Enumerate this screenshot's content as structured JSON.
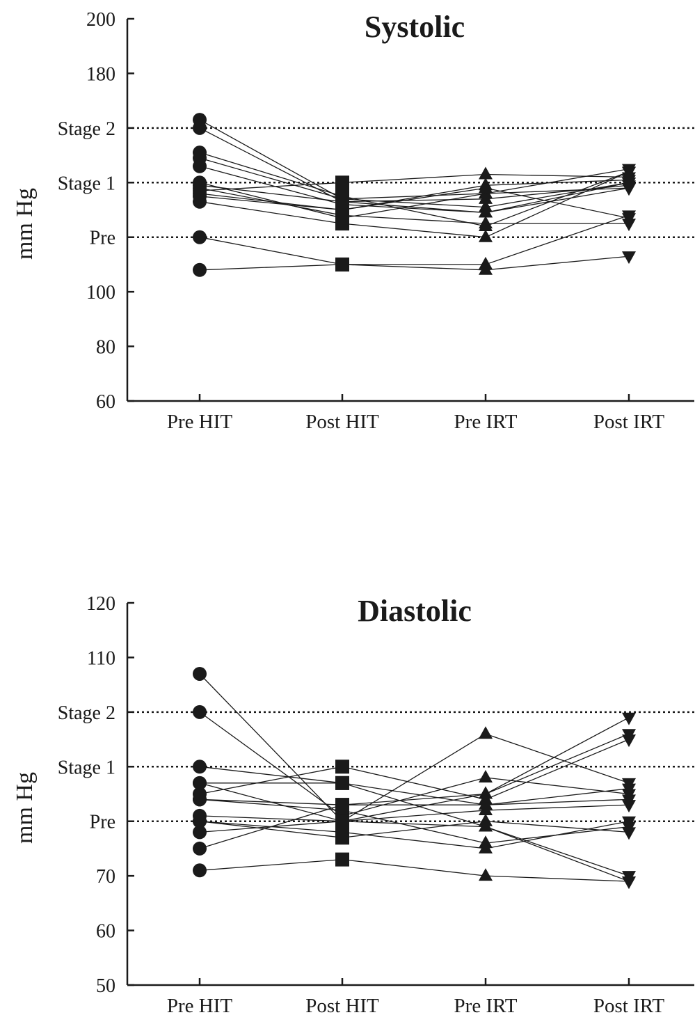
{
  "chart_data": [
    {
      "type": "line",
      "title": "Systolic",
      "ylabel": "mm Hg",
      "xlabel": "",
      "ylim": [
        60,
        200
      ],
      "yticks": [
        {
          "value": 60,
          "label": "60"
        },
        {
          "value": 80,
          "label": "80"
        },
        {
          "value": 100,
          "label": "100"
        },
        {
          "value": 120,
          "label": "Pre"
        },
        {
          "value": 140,
          "label": "Stage 1"
        },
        {
          "value": 160,
          "label": "Stage 2"
        },
        {
          "value": 180,
          "label": "180"
        },
        {
          "value": 200,
          "label": "200"
        }
      ],
      "reference_lines": [
        120,
        140,
        160
      ],
      "categories": [
        "Pre HIT",
        "Post HIT",
        "Pre IRT",
        "Post IRT"
      ],
      "markers": [
        "circle",
        "square",
        "triangle-up",
        "triangle-down"
      ],
      "series": [
        {
          "values": [
            163,
            134,
            136,
            145
          ]
        },
        {
          "values": [
            160,
            133,
            129,
            140
          ]
        },
        {
          "values": [
            151,
            135,
            124,
            144
          ]
        },
        {
          "values": [
            149,
            134,
            131,
            140
          ]
        },
        {
          "values": [
            146,
            132,
            129,
            138
          ]
        },
        {
          "values": [
            140,
            127,
            136,
            138
          ]
        },
        {
          "values": [
            139,
            133,
            134,
            139
          ]
        },
        {
          "values": [
            136,
            130,
            138,
            127
          ]
        },
        {
          "values": [
            135,
            130,
            139,
            141
          ]
        },
        {
          "values": [
            133,
            125,
            120,
            144
          ]
        },
        {
          "values": [
            120,
            110,
            110,
            128
          ]
        },
        {
          "values": [
            108,
            110,
            108,
            113
          ]
        },
        {
          "values": [
            137,
            140,
            143,
            142
          ]
        },
        {
          "values": [
            138,
            128,
            125,
            125
          ]
        }
      ]
    },
    {
      "type": "line",
      "title": "Diastolic",
      "ylabel": "mm Hg",
      "xlabel": "",
      "ylim": [
        50,
        120
      ],
      "yticks": [
        {
          "value": 50,
          "label": "50"
        },
        {
          "value": 60,
          "label": "60"
        },
        {
          "value": 70,
          "label": "70"
        },
        {
          "value": 80,
          "label": "Pre"
        },
        {
          "value": 90,
          "label": "Stage 1"
        },
        {
          "value": 100,
          "label": "Stage 2"
        },
        {
          "value": 110,
          "label": "110"
        },
        {
          "value": 120,
          "label": "120"
        }
      ],
      "reference_lines": [
        80,
        90,
        100
      ],
      "categories": [
        "Pre HIT",
        "Post HIT",
        "Pre IRT",
        "Post IRT"
      ],
      "markers": [
        "circle",
        "square",
        "triangle-up",
        "triangle-down"
      ],
      "series": [
        {
          "values": [
            107,
            80,
            85,
            96
          ]
        },
        {
          "values": [
            100,
            81,
            88,
            85
          ]
        },
        {
          "values": [
            90,
            87,
            83,
            84
          ]
        },
        {
          "values": [
            87,
            87,
            79,
            70
          ]
        },
        {
          "values": [
            84,
            83,
            83,
            86
          ]
        },
        {
          "values": [
            84,
            82,
            76,
            79
          ]
        },
        {
          "values": [
            81,
            80,
            82,
            83
          ]
        },
        {
          "values": [
            80,
            78,
            75,
            80
          ]
        },
        {
          "values": [
            78,
            80,
            79,
            69
          ]
        },
        {
          "values": [
            75,
            83,
            85,
            99
          ]
        },
        {
          "values": [
            71,
            73,
            70,
            69
          ]
        },
        {
          "values": [
            85,
            90,
            84,
            95
          ]
        },
        {
          "values": [
            87,
            80,
            96,
            87
          ]
        },
        {
          "values": [
            80,
            77,
            80,
            78
          ]
        }
      ]
    }
  ]
}
